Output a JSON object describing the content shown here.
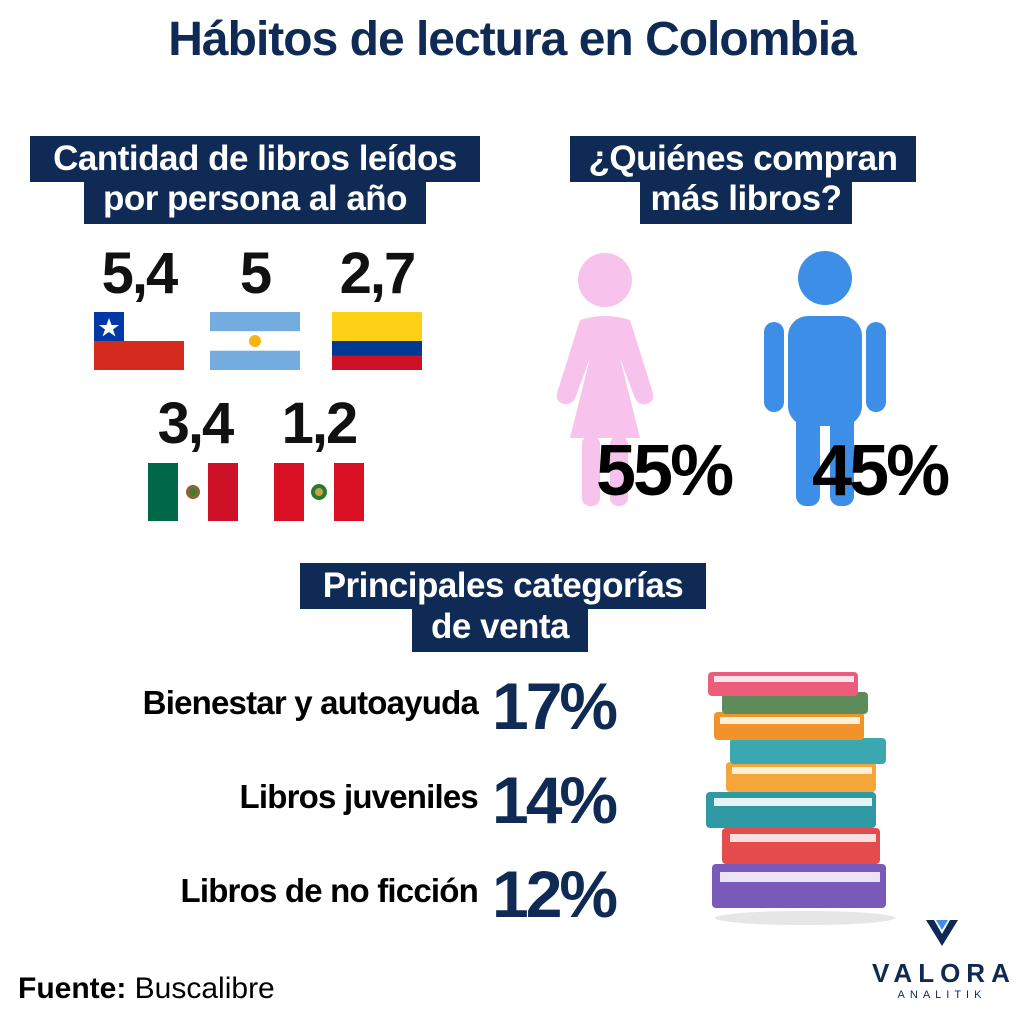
{
  "title": "Hábitos de lectura en Colombia",
  "books_section": {
    "label_line1": "Cantidad de libros leídos",
    "label_line2": "por persona al año",
    "countries": [
      {
        "value": "5,4",
        "flag": "chile-flag"
      },
      {
        "value": "5",
        "flag": "argentina-flag"
      },
      {
        "value": "2,7",
        "flag": "colombia-flag"
      },
      {
        "value": "3,4",
        "flag": "mexico-flag"
      },
      {
        "value": "1,2",
        "flag": "peru-flag"
      }
    ]
  },
  "buyers_section": {
    "label_line1": "¿Quiénes compran",
    "label_line2": "más libros?",
    "women": {
      "pct": "55%",
      "icon": "woman-icon",
      "color": "#f7c3ec"
    },
    "men": {
      "pct": "45%",
      "icon": "man-icon",
      "color": "#3d8ee6"
    }
  },
  "categories_section": {
    "label_line1": "Principales categorías",
    "label_line2": "de venta",
    "items": [
      {
        "label": "Bienestar y autoayuda",
        "pct": "17%"
      },
      {
        "label": "Libros juveniles",
        "pct": "14%"
      },
      {
        "label": "Libros de no ficción",
        "pct": "12%"
      }
    ],
    "icon": "book-stack-icon"
  },
  "source": {
    "prefix": "Fuente:",
    "name": "Buscalibre"
  },
  "brand": {
    "name": "VALORA",
    "sub": "ANALITIK"
  },
  "colors": {
    "navy": "#0f2a54"
  }
}
